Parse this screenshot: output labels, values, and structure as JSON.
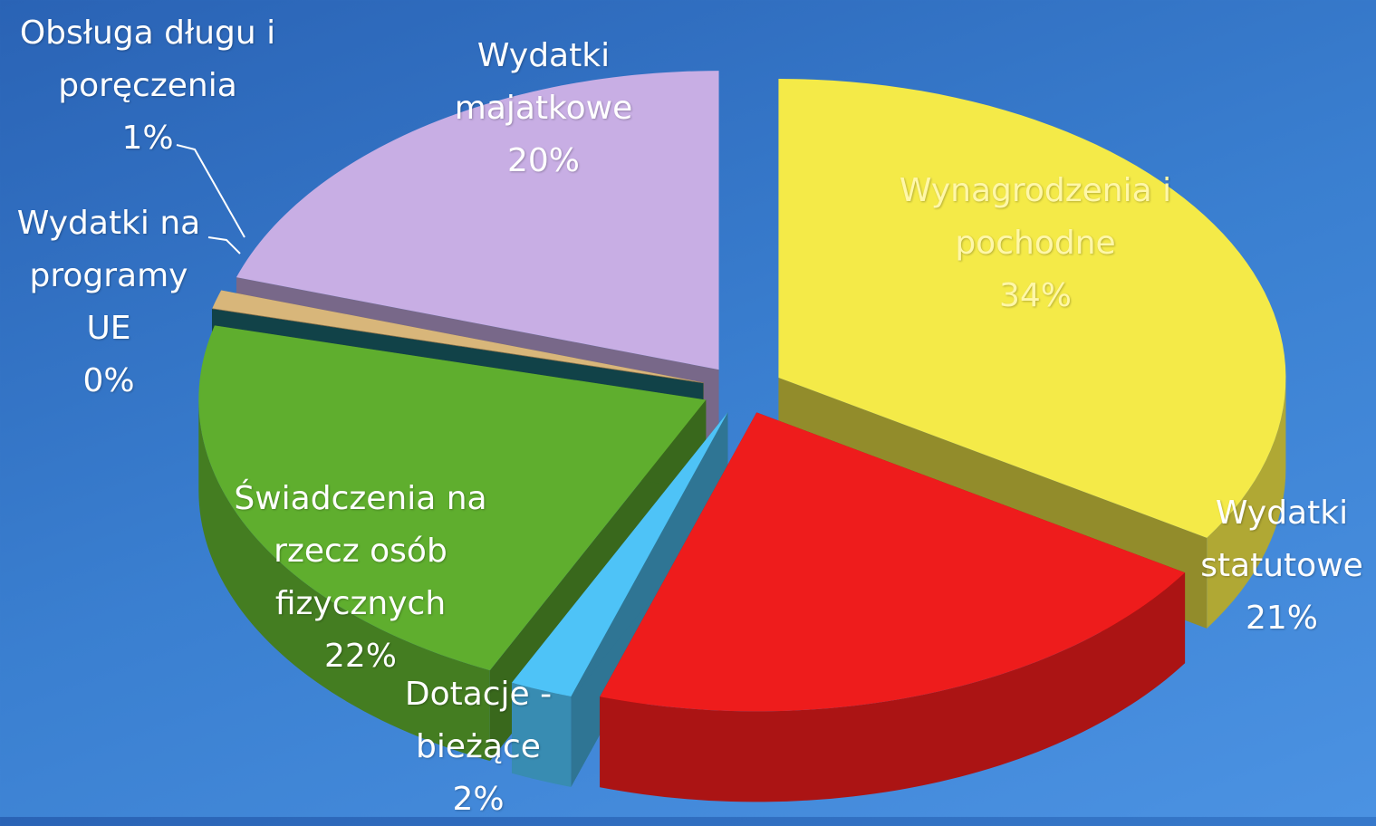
{
  "chart_data": {
    "type": "pie",
    "categories": [
      "Wynagrodzenia i pochodne",
      "Wydatki statutowe",
      "Dotacje - bieżące",
      "Świadczenia na rzecz osób fizycznych",
      "Wydatki na programy UE",
      "Obsługa długu i poręczenia",
      "Wydatki majatkowe"
    ],
    "values": [
      34,
      21,
      2,
      22,
      0,
      1,
      20
    ],
    "value_labels": [
      "34%",
      "21%",
      "2%",
      "22%",
      "0%",
      "1%",
      "20%"
    ],
    "colors": [
      "#f4ea48",
      "#ee1c1c",
      "#4ec3f7",
      "#5fae2e",
      "#1d6e78",
      "#d8b67a",
      "#c8aee4"
    ]
  }
}
